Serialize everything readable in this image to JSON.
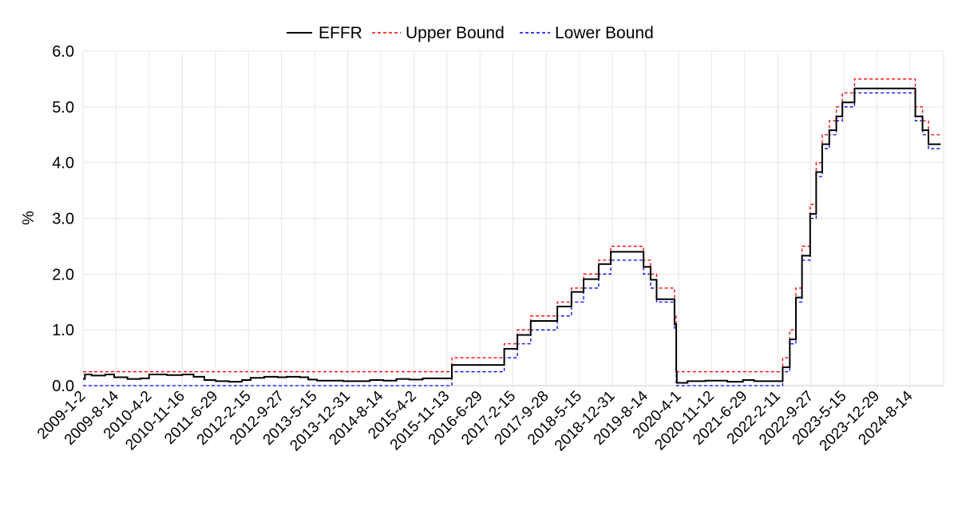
{
  "chart_data": {
    "type": "line",
    "title": "",
    "xlabel": "",
    "ylabel": "%",
    "ylim": [
      0,
      6
    ],
    "yticks": [
      "0.0",
      "1.0",
      "2.0",
      "3.0",
      "4.0",
      "5.0",
      "6.0"
    ],
    "grid": true,
    "legend_placement": "top-center",
    "x_tick_labels": [
      "2009-1-2",
      "2009-8-14",
      "2010-4-2",
      "2010-11-16",
      "2011-6-29",
      "2012-2-15",
      "2012-9-27",
      "2013-5-15",
      "2013-12-31",
      "2014-8-14",
      "2015-4-2",
      "2015-11-13",
      "2016-6-29",
      "2017-2-15",
      "2017-9-28",
      "2018-5-15",
      "2018-12-31",
      "2019-8-14",
      "2020-4-1",
      "2020-11-12",
      "2021-6-29",
      "2022-2-11",
      "2022-9-27",
      "2023-5-15",
      "2023-12-29",
      "2024-8-14"
    ],
    "x_end": "2025-3-14",
    "series": [
      {
        "name": "EFFR",
        "color": "#000000",
        "style": "solid",
        "points": [
          [
            "2009-1-2",
            0.12
          ],
          [
            "2009-1-15",
            0.2
          ],
          [
            "2009-3-1",
            0.18
          ],
          [
            "2009-6-1",
            0.2
          ],
          [
            "2009-8-1",
            0.15
          ],
          [
            "2009-11-1",
            0.12
          ],
          [
            "2010-2-1",
            0.13
          ],
          [
            "2010-4-1",
            0.2
          ],
          [
            "2010-8-1",
            0.19
          ],
          [
            "2010-11-16",
            0.2
          ],
          [
            "2011-2-1",
            0.16
          ],
          [
            "2011-4-15",
            0.1
          ],
          [
            "2011-7-1",
            0.08
          ],
          [
            "2011-10-1",
            0.07
          ],
          [
            "2012-1-1",
            0.1
          ],
          [
            "2012-3-1",
            0.14
          ],
          [
            "2012-6-1",
            0.16
          ],
          [
            "2012-9-1",
            0.15
          ],
          [
            "2012-11-1",
            0.16
          ],
          [
            "2013-2-1",
            0.15
          ],
          [
            "2013-4-1",
            0.11
          ],
          [
            "2013-6-1",
            0.09
          ],
          [
            "2013-12-1",
            0.08
          ],
          [
            "2014-3-1",
            0.08
          ],
          [
            "2014-6-1",
            0.1
          ],
          [
            "2014-9-1",
            0.09
          ],
          [
            "2014-12-1",
            0.12
          ],
          [
            "2015-3-1",
            0.11
          ],
          [
            "2015-6-1",
            0.13
          ],
          [
            "2015-10-1",
            0.13
          ],
          [
            "2015-12-17",
            0.37
          ],
          [
            "2016-12-15",
            0.66
          ],
          [
            "2017-3-16",
            0.91
          ],
          [
            "2017-6-15",
            1.16
          ],
          [
            "2017-12-14",
            1.42
          ],
          [
            "2018-3-22",
            1.68
          ],
          [
            "2018-6-14",
            1.91
          ],
          [
            "2018-9-27",
            2.18
          ],
          [
            "2018-12-20",
            2.4
          ],
          [
            "2019-8-1",
            2.13
          ],
          [
            "2019-9-19",
            1.9
          ],
          [
            "2019-10-31",
            1.55
          ],
          [
            "2020-3-4",
            1.1
          ],
          [
            "2020-3-16",
            0.25
          ],
          [
            "2020-3-20",
            0.05
          ],
          [
            "2020-6-1",
            0.08
          ],
          [
            "2020-10-1",
            0.09
          ],
          [
            "2021-3-1",
            0.07
          ],
          [
            "2021-6-17",
            0.1
          ],
          [
            "2021-9-1",
            0.08
          ],
          [
            "2022-3-17",
            0.33
          ],
          [
            "2022-5-5",
            0.83
          ],
          [
            "2022-6-16",
            1.58
          ],
          [
            "2022-7-28",
            2.33
          ],
          [
            "2022-9-22",
            3.08
          ],
          [
            "2022-11-3",
            3.83
          ],
          [
            "2022-12-15",
            4.33
          ],
          [
            "2023-2-2",
            4.58
          ],
          [
            "2023-3-23",
            4.83
          ],
          [
            "2023-5-4",
            5.08
          ],
          [
            "2023-7-27",
            5.33
          ],
          [
            "2024-9-19",
            4.83
          ],
          [
            "2024-11-8",
            4.58
          ],
          [
            "2024-12-19",
            4.33
          ]
        ]
      },
      {
        "name": "Upper Bound",
        "color": "#ff0000",
        "style": "dashed",
        "points": [
          [
            "2009-1-2",
            0.25
          ],
          [
            "2015-12-17",
            0.5
          ],
          [
            "2016-12-15",
            0.75
          ],
          [
            "2017-3-16",
            1.0
          ],
          [
            "2017-6-15",
            1.25
          ],
          [
            "2017-12-14",
            1.5
          ],
          [
            "2018-3-22",
            1.75
          ],
          [
            "2018-6-14",
            2.0
          ],
          [
            "2018-9-27",
            2.25
          ],
          [
            "2018-12-20",
            2.5
          ],
          [
            "2019-8-1",
            2.25
          ],
          [
            "2019-9-19",
            2.0
          ],
          [
            "2019-10-31",
            1.75
          ],
          [
            "2020-3-4",
            1.25
          ],
          [
            "2020-3-16",
            0.25
          ],
          [
            "2022-3-17",
            0.5
          ],
          [
            "2022-5-5",
            1.0
          ],
          [
            "2022-6-16",
            1.75
          ],
          [
            "2022-7-28",
            2.5
          ],
          [
            "2022-9-22",
            3.25
          ],
          [
            "2022-11-3",
            4.0
          ],
          [
            "2022-12-15",
            4.5
          ],
          [
            "2023-2-2",
            4.75
          ],
          [
            "2023-3-23",
            5.0
          ],
          [
            "2023-5-4",
            5.25
          ],
          [
            "2023-7-27",
            5.5
          ],
          [
            "2024-9-19",
            5.0
          ],
          [
            "2024-11-8",
            4.75
          ],
          [
            "2024-12-19",
            4.5
          ]
        ]
      },
      {
        "name": "Lower Bound",
        "color": "#0000ff",
        "style": "dashed",
        "points": [
          [
            "2009-1-2",
            0.0
          ],
          [
            "2015-12-17",
            0.25
          ],
          [
            "2016-12-15",
            0.5
          ],
          [
            "2017-3-16",
            0.75
          ],
          [
            "2017-6-15",
            1.0
          ],
          [
            "2017-12-14",
            1.25
          ],
          [
            "2018-3-22",
            1.5
          ],
          [
            "2018-6-14",
            1.75
          ],
          [
            "2018-9-27",
            2.0
          ],
          [
            "2018-12-20",
            2.25
          ],
          [
            "2019-8-1",
            2.0
          ],
          [
            "2019-9-19",
            1.75
          ],
          [
            "2019-10-31",
            1.5
          ],
          [
            "2020-3-4",
            1.0
          ],
          [
            "2020-3-16",
            0.0
          ],
          [
            "2022-3-17",
            0.25
          ],
          [
            "2022-5-5",
            0.75
          ],
          [
            "2022-6-16",
            1.5
          ],
          [
            "2022-7-28",
            2.25
          ],
          [
            "2022-9-22",
            3.0
          ],
          [
            "2022-11-3",
            3.75
          ],
          [
            "2022-12-15",
            4.25
          ],
          [
            "2023-2-2",
            4.5
          ],
          [
            "2023-3-23",
            4.75
          ],
          [
            "2023-5-4",
            5.0
          ],
          [
            "2023-7-27",
            5.25
          ],
          [
            "2024-9-19",
            4.75
          ],
          [
            "2024-11-8",
            4.5
          ],
          [
            "2024-12-19",
            4.25
          ]
        ]
      }
    ]
  }
}
